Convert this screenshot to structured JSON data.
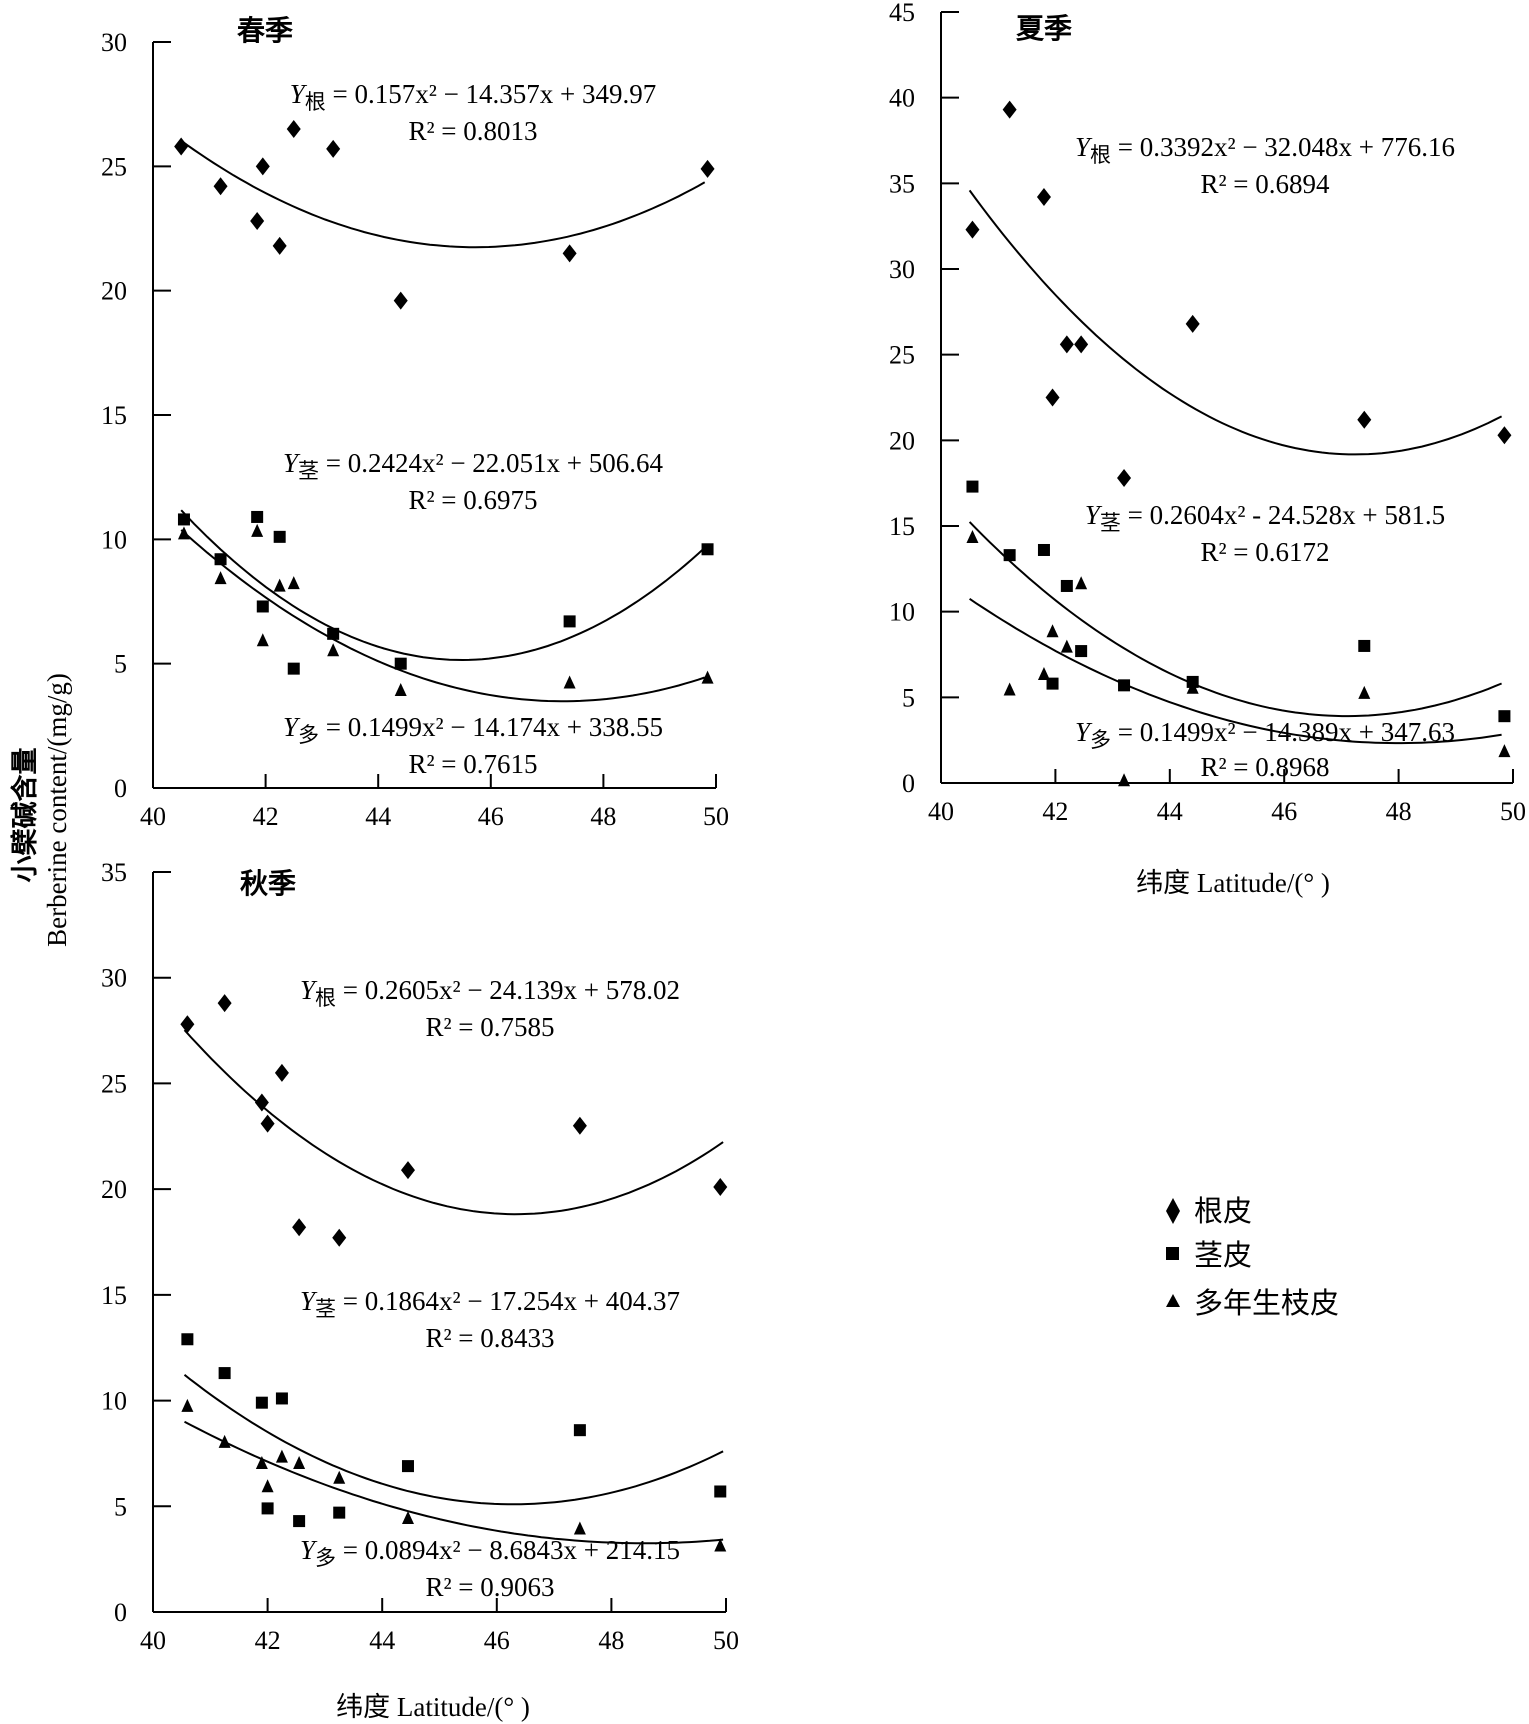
{
  "figure": {
    "ylabel_cn": "小檗碱含量",
    "ylabel_en": "Berberine content/(mg/g)",
    "xlabel_summer": "纬度 Latitude/(° )",
    "xlabel_autumn": "纬度 Latitude/(° )"
  },
  "legend": {
    "items": [
      {
        "label": "根皮",
        "marker": "diamond"
      },
      {
        "label": "茎皮",
        "marker": "square"
      },
      {
        "label": "多年生枝皮",
        "marker": "triangle"
      }
    ]
  },
  "chart_data": [
    {
      "type": "scatter",
      "title": "春季",
      "xlim": [
        40,
        50
      ],
      "ylim": [
        0,
        30
      ],
      "xticks": [
        40,
        42,
        44,
        46,
        48,
        50
      ],
      "yticks": [
        0,
        5,
        10,
        15,
        20,
        25,
        30
      ],
      "series": [
        {
          "name": "根皮",
          "marker": "diamond",
          "x": [
            40.5,
            41.2,
            41.85,
            41.95,
            42.25,
            42.5,
            43.2,
            44.4,
            47.4,
            49.85
          ],
          "y": [
            25.8,
            24.2,
            22.8,
            25.0,
            21.8,
            26.5,
            25.7,
            19.6,
            21.5,
            24.9
          ]
        },
        {
          "name": "茎皮",
          "marker": "square",
          "x": [
            40.55,
            41.2,
            41.85,
            41.95,
            42.25,
            42.5,
            43.2,
            44.4,
            47.4,
            49.85
          ],
          "y": [
            10.8,
            9.2,
            10.9,
            7.3,
            10.1,
            4.8,
            6.2,
            5.0,
            6.7,
            9.6
          ]
        },
        {
          "name": "多年生枝皮",
          "marker": "triangle",
          "x": [
            40.55,
            41.2,
            41.85,
            41.95,
            42.25,
            42.5,
            43.2,
            44.4,
            47.4,
            49.85
          ],
          "y": [
            10.2,
            8.4,
            10.3,
            5.9,
            8.1,
            8.2,
            5.5,
            3.9,
            4.2,
            4.4
          ]
        }
      ],
      "fits": [
        {
          "name": "根",
          "coef": [
            0.157,
            -14.357,
            349.97
          ],
          "x_range": [
            40.5,
            49.8
          ]
        },
        {
          "name": "茎",
          "coef": [
            0.2424,
            -22.051,
            506.64
          ],
          "x_range": [
            40.5,
            49.8
          ]
        },
        {
          "name": "多",
          "coef": [
            0.1499,
            -14.174,
            338.55
          ],
          "x_range": [
            40.5,
            49.8
          ]
        }
      ],
      "equations": [
        {
          "sub": "根",
          "rhs": "= 0.157x² − 14.357x + 349.97",
          "r2": "R² = 0.8013"
        },
        {
          "sub": "茎",
          "rhs": "= 0.2424x² − 22.051x + 506.64",
          "r2": "R² = 0.6975"
        },
        {
          "sub": "多",
          "rhs": "= 0.1499x² − 14.174x + 338.55",
          "r2": "R² = 0.7615"
        }
      ]
    },
    {
      "type": "scatter",
      "title": "夏季",
      "xlim": [
        40,
        50
      ],
      "ylim": [
        0,
        45
      ],
      "xticks": [
        40,
        42,
        44,
        46,
        48,
        50
      ],
      "yticks": [
        0,
        5,
        10,
        15,
        20,
        25,
        30,
        35,
        40,
        45
      ],
      "series": [
        {
          "name": "根皮",
          "marker": "diamond",
          "x": [
            40.55,
            41.2,
            41.8,
            41.95,
            42.2,
            42.45,
            43.2,
            44.4,
            47.4,
            49.85
          ],
          "y": [
            32.3,
            39.3,
            34.2,
            22.5,
            25.6,
            25.6,
            17.8,
            26.8,
            21.2,
            20.3
          ]
        },
        {
          "name": "茎皮",
          "marker": "square",
          "x": [
            40.55,
            41.2,
            41.8,
            41.95,
            42.2,
            42.45,
            43.2,
            44.4,
            47.4,
            49.85
          ],
          "y": [
            17.3,
            13.3,
            13.6,
            5.8,
            11.5,
            7.7,
            5.7,
            5.9,
            8.0,
            3.9
          ]
        },
        {
          "name": "多年生枝皮",
          "marker": "triangle",
          "x": [
            40.55,
            41.2,
            41.8,
            41.95,
            42.2,
            42.45,
            43.2,
            44.4,
            47.4,
            49.85
          ],
          "y": [
            14.3,
            5.4,
            6.3,
            8.8,
            7.9,
            11.6,
            0.1,
            5.5,
            5.2,
            1.8
          ]
        }
      ],
      "fits": [
        {
          "name": "根",
          "coef": [
            0.3392,
            -32.048,
            776.16
          ],
          "x_range": [
            40.5,
            49.8
          ]
        },
        {
          "name": "茎",
          "coef": [
            0.2604,
            -24.528,
            581.5
          ],
          "x_range": [
            40.5,
            49.8
          ]
        },
        {
          "name": "多",
          "coef": [
            0.1499,
            -14.389,
            347.63
          ],
          "x_range": [
            40.5,
            49.8
          ]
        }
      ],
      "equations": [
        {
          "sub": "根",
          "rhs": "= 0.3392x² − 32.048x + 776.16",
          "r2": "R² = 0.6894"
        },
        {
          "sub": "茎",
          "rhs": "= 0.2604x² - 24.528x + 581.5",
          "r2": "R² = 0.6172"
        },
        {
          "sub": "多",
          "rhs": "= 0.1499x² − 14.389x + 347.63",
          "r2": "R² = 0.8968"
        }
      ]
    },
    {
      "type": "scatter",
      "title": "秋季",
      "xlim": [
        40,
        50
      ],
      "ylim": [
        0,
        35
      ],
      "xticks": [
        40,
        42,
        44,
        46,
        48,
        50
      ],
      "yticks": [
        0,
        5,
        10,
        15,
        20,
        25,
        30,
        35
      ],
      "series": [
        {
          "name": "根皮",
          "marker": "diamond",
          "x": [
            40.6,
            41.25,
            41.9,
            42.0,
            42.25,
            42.55,
            43.25,
            44.45,
            47.45,
            49.9
          ],
          "y": [
            27.8,
            28.8,
            24.1,
            23.1,
            25.5,
            18.2,
            17.7,
            20.9,
            23.0,
            20.1
          ]
        },
        {
          "name": "茎皮",
          "marker": "square",
          "x": [
            40.6,
            41.25,
            41.9,
            42.0,
            42.25,
            42.55,
            43.25,
            44.45,
            47.45,
            49.9
          ],
          "y": [
            12.9,
            11.3,
            9.9,
            4.9,
            10.1,
            4.3,
            4.7,
            6.9,
            8.6,
            5.7
          ]
        },
        {
          "name": "多年生枝皮",
          "marker": "triangle",
          "x": [
            40.6,
            41.25,
            41.9,
            42.0,
            42.25,
            42.55,
            43.25,
            44.45,
            47.45,
            49.9
          ],
          "y": [
            9.7,
            8.0,
            7.0,
            5.9,
            7.3,
            7.0,
            6.3,
            4.4,
            3.9,
            3.1
          ]
        }
      ],
      "fits": [
        {
          "name": "根",
          "coef": [
            0.2605,
            -24.139,
            578.02
          ],
          "x_range": [
            40.55,
            49.95
          ]
        },
        {
          "name": "茎",
          "coef": [
            0.1864,
            -17.254,
            404.37
          ],
          "x_range": [
            40.55,
            49.95
          ]
        },
        {
          "name": "多",
          "coef": [
            0.0894,
            -8.6843,
            214.15
          ],
          "x_range": [
            40.55,
            49.95
          ]
        }
      ],
      "equations": [
        {
          "sub": "根",
          "rhs": "= 0.2605x² − 24.139x + 578.02",
          "r2": "R²  = 0.7585"
        },
        {
          "sub": "茎",
          "rhs": "= 0.1864x² − 17.254x + 404.37",
          "r2": "R²  = 0.8433"
        },
        {
          "sub": "多",
          "rhs": "= 0.0894x² − 8.6843x + 214.15",
          "r2": "R² = 0.9063"
        }
      ]
    }
  ]
}
